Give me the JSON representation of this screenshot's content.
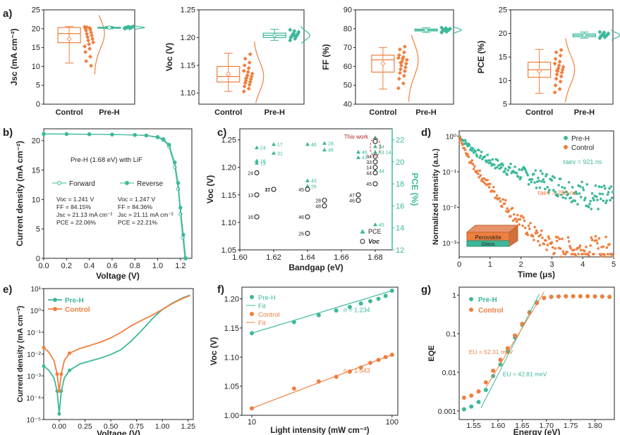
{
  "colors": {
    "control": "#ef7f3f",
    "preh": "#3db89a",
    "axis": "#222222",
    "dashed_circle": "#c0392b",
    "title_red": "#b32222"
  },
  "chart_data": [
    {
      "type": "box",
      "panel": "a) Jsc",
      "ylabel": "Jsc (mA cm⁻²)",
      "ylim": [
        0,
        25
      ],
      "yticks": [
        0,
        5,
        10,
        15,
        20,
        25
      ],
      "categories": [
        "Control",
        "Pre-H"
      ],
      "series": [
        {
          "name": "Control",
          "median": 18.7,
          "q1": 16.3,
          "q3": 20.3,
          "whisker_low": 10.9,
          "whisker_high": 20.6,
          "mean": 17.3,
          "points": [
            20.5,
            20.2,
            20.0,
            19.8,
            19.5,
            19.0,
            18.6,
            18.2,
            17.8,
            17.3,
            16.9,
            16.4,
            15.9,
            15.3,
            14.7,
            13.8,
            12.6,
            11.4,
            10.2,
            20.4
          ]
        },
        {
          "name": "Pre-H",
          "median": 20.3,
          "q1": 20.2,
          "q3": 20.4,
          "whisker_low": 20.0,
          "whisker_high": 20.6,
          "mean": 20.3,
          "points": [
            20.0,
            20.1,
            20.2,
            20.2,
            20.3,
            20.3,
            20.3,
            20.4,
            20.4,
            20.5,
            20.5,
            20.6,
            20.3,
            20.2,
            20.4
          ]
        }
      ]
    },
    {
      "type": "box",
      "panel": "a) Voc",
      "ylabel": "Voc (V)",
      "ylim": [
        1.08,
        1.25
      ],
      "yticks": [
        1.1,
        1.15,
        1.2,
        1.25
      ],
      "categories": [
        "Control",
        "Pre-H"
      ],
      "series": [
        {
          "name": "Control",
          "median": 1.13,
          "q1": 1.12,
          "q3": 1.148,
          "whisker_low": 1.103,
          "whisker_high": 1.172,
          "mean": 1.134,
          "points": [
            1.103,
            1.108,
            1.112,
            1.115,
            1.118,
            1.12,
            1.122,
            1.125,
            1.128,
            1.13,
            1.132,
            1.135,
            1.138,
            1.14,
            1.145,
            1.15,
            1.155,
            1.162,
            1.17,
            1.126
          ]
        },
        {
          "name": "Pre-H",
          "median": 1.204,
          "q1": 1.2,
          "q3": 1.208,
          "whisker_low": 1.195,
          "whisker_high": 1.215,
          "mean": 1.204,
          "points": [
            1.195,
            1.198,
            1.2,
            1.201,
            1.202,
            1.203,
            1.204,
            1.205,
            1.206,
            1.207,
            1.208,
            1.21,
            1.212,
            1.214,
            1.203
          ]
        }
      ]
    },
    {
      "type": "box",
      "panel": "a) FF",
      "ylabel": "FF (%)",
      "ylim": [
        40,
        90
      ],
      "yticks": [
        40,
        50,
        60,
        70,
        80,
        90
      ],
      "categories": [
        "Control",
        "Pre-H"
      ],
      "series": [
        {
          "name": "Control",
          "median": 63.5,
          "q1": 57.0,
          "q3": 66.0,
          "whisker_low": 48.0,
          "whisker_high": 70.0,
          "mean": 61.5,
          "points": [
            48.5,
            51.0,
            53.5,
            55.0,
            56.5,
            57.5,
            58.5,
            59.5,
            60.5,
            61.5,
            62.5,
            63.5,
            64.0,
            64.5,
            65.0,
            66.0,
            67.5,
            69.0,
            70.5,
            62.0
          ]
        },
        {
          "name": "Pre-H",
          "median": 79.3,
          "q1": 78.8,
          "q3": 79.8,
          "whisker_low": 78.0,
          "whisker_high": 80.6,
          "mean": 79.3,
          "points": [
            78.0,
            78.4,
            78.7,
            78.9,
            79.1,
            79.2,
            79.3,
            79.4,
            79.5,
            79.6,
            79.8,
            80.0,
            80.3,
            80.6,
            79.0
          ]
        }
      ]
    },
    {
      "type": "box",
      "panel": "a) PCE",
      "ylabel": "PCE (%)",
      "ylim": [
        5,
        25
      ],
      "yticks": [
        5,
        10,
        15,
        20,
        25
      ],
      "categories": [
        "Control",
        "Pre-H"
      ],
      "series": [
        {
          "name": "Control",
          "median": 12.3,
          "q1": 10.7,
          "q3": 13.9,
          "whisker_low": 7.3,
          "whisker_high": 16.6,
          "mean": 12.0,
          "points": [
            7.5,
            8.2,
            9.0,
            9.8,
            10.4,
            10.9,
            11.3,
            11.7,
            12.0,
            12.3,
            12.6,
            12.9,
            13.2,
            13.6,
            14.0,
            14.6,
            15.3,
            16.0,
            16.5,
            12.1
          ]
        },
        {
          "name": "Pre-H",
          "median": 19.6,
          "q1": 19.3,
          "q3": 19.9,
          "whisker_low": 19.0,
          "whisker_high": 20.3,
          "mean": 19.6,
          "points": [
            19.0,
            19.2,
            19.3,
            19.4,
            19.5,
            19.5,
            19.6,
            19.6,
            19.7,
            19.8,
            19.9,
            20.0,
            20.2,
            20.3,
            19.4
          ]
        }
      ]
    },
    {
      "type": "line",
      "panel": "b)",
      "xlabel": "Voltage (V)",
      "ylabel": "Current density (mA cm⁻²)",
      "xlim": [
        0,
        1.3
      ],
      "ylim": [
        0,
        22
      ],
      "xticks": [
        0.0,
        0.2,
        0.4,
        0.6,
        0.8,
        1.0,
        1.2
      ],
      "yticks": [
        0,
        5,
        10,
        15,
        20
      ],
      "annotation": "Pre-H (1.68 eV) with LiF",
      "series": [
        {
          "name": "Forward",
          "x": [
            0,
            0.2,
            0.4,
            0.6,
            0.8,
            0.9,
            1.0,
            1.05,
            1.1,
            1.15,
            1.18,
            1.2,
            1.22,
            1.24
          ],
          "y": [
            21.13,
            21.12,
            21.08,
            21.03,
            20.95,
            20.85,
            20.55,
            20.1,
            19.0,
            15.5,
            11.8,
            7.5,
            3.5,
            0
          ]
        },
        {
          "name": "Reverse",
          "x": [
            0,
            0.2,
            0.4,
            0.6,
            0.8,
            0.9,
            1.0,
            1.05,
            1.1,
            1.15,
            1.18,
            1.2,
            1.225,
            1.247
          ],
          "y": [
            21.11,
            21.1,
            21.07,
            21.02,
            20.96,
            20.88,
            20.62,
            20.25,
            19.3,
            16.3,
            12.8,
            8.6,
            4.0,
            0
          ]
        }
      ],
      "stats": [
        {
          "name": "Forward",
          "lines": [
            "Voc = 1.241 V",
            "FF = 84.15%",
            "Jsc = 21.13 mA cm⁻²",
            "PCE = 22.06%"
          ]
        },
        {
          "name": "Reverse",
          "lines": [
            "Voc = 1.247 V",
            "FF = 84.36%",
            "Jsc = 21.11 mA cm⁻²",
            "PCE = 22.21%"
          ]
        }
      ]
    },
    {
      "type": "scatter",
      "panel": "c)",
      "xlabel": "Bandgap (eV)",
      "ylabel": "Voc (V)",
      "ylabel_right": "PCE (%)",
      "xlim": [
        1.6,
        1.69
      ],
      "ylim": [
        1.05,
        1.27
      ],
      "ylim_right": [
        12,
        23
      ],
      "xticks": [
        1.6,
        1.62,
        1.64,
        1.66,
        1.68
      ],
      "yticks": [
        1.05,
        1.1,
        1.15,
        1.2,
        1.25
      ],
      "yticks_right": [
        12,
        14,
        16,
        18,
        20,
        22
      ],
      "legend": [
        "PCE",
        "Voc"
      ],
      "this_work_label": "This work",
      "voc_points": [
        {
          "x": 1.61,
          "y": 1.19,
          "label": "24"
        },
        {
          "x": 1.61,
          "y": 1.15,
          "label": "13"
        },
        {
          "x": 1.61,
          "y": 1.11,
          "label": "16"
        },
        {
          "x": 1.62,
          "y": 1.16,
          "label": "31"
        },
        {
          "x": 1.62,
          "y": 1.16,
          "label": "17"
        },
        {
          "x": 1.64,
          "y": 1.16,
          "label": "45"
        },
        {
          "x": 1.64,
          "y": 1.11,
          "label": "46"
        },
        {
          "x": 1.64,
          "y": 1.08,
          "label": "26"
        },
        {
          "x": 1.65,
          "y": 1.14,
          "label": "28"
        },
        {
          "x": 1.65,
          "y": 1.13,
          "label": "48"
        },
        {
          "x": 1.67,
          "y": 1.15,
          "label": "47"
        },
        {
          "x": 1.67,
          "y": 1.14,
          "label": "46"
        },
        {
          "x": 1.68,
          "y": 1.22,
          "label": "34"
        },
        {
          "x": 1.68,
          "y": 1.21,
          "label": "33"
        },
        {
          "x": 1.68,
          "y": 1.2,
          "label": "14"
        },
        {
          "x": 1.68,
          "y": 1.19,
          "label": "44"
        },
        {
          "x": 1.68,
          "y": 1.17,
          "label": "45"
        },
        {
          "x": 1.68,
          "y": 1.247,
          "label": ""
        }
      ],
      "pce_points": [
        {
          "x": 1.61,
          "y": 21.3,
          "label": "24"
        },
        {
          "x": 1.61,
          "y": 20.1,
          "label": "16"
        },
        {
          "x": 1.61,
          "y": 19.9,
          "label": "13"
        },
        {
          "x": 1.62,
          "y": 21.6,
          "label": "17"
        },
        {
          "x": 1.62,
          "y": 20.8,
          "label": "31"
        },
        {
          "x": 1.64,
          "y": 21.6,
          "label": "46"
        },
        {
          "x": 1.64,
          "y": 18.3,
          "label": "45"
        },
        {
          "x": 1.64,
          "y": 17.8,
          "label": "26"
        },
        {
          "x": 1.65,
          "y": 21.7,
          "label": "28"
        },
        {
          "x": 1.65,
          "y": 21.1,
          "label": "48"
        },
        {
          "x": 1.67,
          "y": 20.9,
          "label": "46"
        },
        {
          "x": 1.67,
          "y": 20.4,
          "label": "47"
        },
        {
          "x": 1.68,
          "y": 21.4,
          "label": "34"
        },
        {
          "x": 1.68,
          "y": 20.9,
          "label": "33 14"
        },
        {
          "x": 1.68,
          "y": 19.2,
          "label": "44"
        },
        {
          "x": 1.68,
          "y": 14.3,
          "label": "45"
        },
        {
          "x": 1.68,
          "y": 22.21,
          "label": ""
        }
      ]
    },
    {
      "type": "scatter",
      "panel": "d)",
      "xlabel": "Time (μs)",
      "ylabel": "Normalized intensity (a.u.)",
      "xlim": [
        0,
        5
      ],
      "ylim_log": [
        0.0004,
        1.4
      ],
      "xticks": [
        0,
        1,
        2,
        3,
        4,
        5
      ],
      "yticks": [
        "10⁰",
        "10⁻¹",
        "10⁻²",
        "10⁻³"
      ],
      "series": [
        {
          "name": "Pre-H",
          "tau_label": "τaev = 921 ns",
          "tau_ns": 921
        },
        {
          "name": "Control",
          "tau_label": "τaev = 259 ns",
          "tau_ns": 259
        }
      ],
      "inset_labels": [
        "Perovskite",
        "Glass"
      ]
    },
    {
      "type": "line",
      "panel": "e)",
      "xlabel": "Voltage (V)",
      "ylabel": "Current density (mA cm⁻²)",
      "xlim": [
        -0.15,
        1.3
      ],
      "ylim_log": [
        1e-05,
        10
      ],
      "xticks": [
        0.0,
        0.25,
        0.5,
        0.75,
        1.0,
        1.25
      ],
      "yticks": [
        "10¹",
        "10⁰",
        "10⁻¹",
        "10⁻²",
        "10⁻³",
        "10⁻⁴",
        "10⁻⁵"
      ],
      "series": [
        {
          "name": "Pre-H",
          "x": [
            -0.15,
            -0.1,
            -0.05,
            -0.02,
            0,
            0.02,
            0.05,
            0.1,
            0.2,
            0.3,
            0.4,
            0.5,
            0.6,
            0.7,
            0.8,
            0.9,
            1.0,
            1.1,
            1.2,
            1.27
          ],
          "y": [
            0.0028,
            0.0018,
            0.0008,
            0.0002,
            1.8e-05,
            0.0002,
            0.0008,
            0.0018,
            0.0035,
            0.0048,
            0.0065,
            0.0095,
            0.016,
            0.04,
            0.12,
            0.4,
            1.1,
            2.2,
            3.8,
            5.0
          ]
        },
        {
          "name": "Control",
          "x": [
            -0.15,
            -0.1,
            -0.05,
            -0.02,
            0,
            0.02,
            0.05,
            0.1,
            0.2,
            0.3,
            0.4,
            0.5,
            0.6,
            0.7,
            0.8,
            0.9,
            1.0,
            1.1,
            1.2,
            1.27
          ],
          "y": [
            0.02,
            0.012,
            0.005,
            0.0012,
            0.0002,
            0.0012,
            0.005,
            0.011,
            0.018,
            0.025,
            0.035,
            0.055,
            0.1,
            0.2,
            0.35,
            0.6,
            1.1,
            2.1,
            3.6,
            4.8
          ]
        }
      ]
    },
    {
      "type": "scatter",
      "panel": "f)",
      "xlabel": "Light intensity (mW cm⁻²)",
      "ylabel": "Voc (V)",
      "xlim_log": [
        8.5,
        110
      ],
      "ylim": [
        1.0,
        1.22
      ],
      "xticks": [
        10,
        100
      ],
      "yticks": [
        1.0,
        1.05,
        1.1,
        1.15,
        1.2
      ],
      "legend": [
        "Pre-H",
        "Fit",
        "Control",
        "Fit"
      ],
      "series": [
        {
          "name": "Pre-H",
          "fit_label": "n = 1.234",
          "x": [
            10,
            20,
            30,
            40,
            50,
            60,
            70,
            80,
            90,
            100
          ],
          "y": [
            1.141,
            1.16,
            1.172,
            1.18,
            1.186,
            1.192,
            1.196,
            1.2,
            1.205,
            1.214
          ]
        },
        {
          "name": "Control",
          "fit_label": "n = 1.543",
          "x": [
            10,
            20,
            30,
            40,
            50,
            60,
            70,
            80,
            90,
            100
          ],
          "y": [
            1.012,
            1.046,
            1.058,
            1.066,
            1.075,
            1.082,
            1.09,
            1.095,
            1.1,
            1.104
          ]
        }
      ]
    },
    {
      "type": "scatter",
      "panel": "g)",
      "xlabel": "Energy (eV)",
      "ylabel": "EQE",
      "xlim": [
        1.52,
        1.84
      ],
      "ylim_log": [
        0.0006,
        1.6
      ],
      "xticks": [
        1.55,
        1.6,
        1.65,
        1.7,
        1.75,
        1.8
      ],
      "yticks": [
        "1",
        "0.1",
        "0.01",
        "0.001"
      ],
      "series": [
        {
          "name": "Pre-H",
          "eu_label": "EU = 42.81 meV",
          "x": [
            1.53,
            1.545,
            1.56,
            1.575,
            1.59,
            1.605,
            1.62,
            1.635,
            1.65,
            1.665,
            1.68,
            1.695,
            1.71,
            1.725,
            1.74,
            1.755,
            1.77,
            1.785,
            1.8,
            1.815,
            1.83
          ],
          "y": [
            0.0011,
            0.0013,
            0.0017,
            0.0035,
            0.008,
            0.016,
            0.035,
            0.08,
            0.17,
            0.36,
            0.65,
            0.85,
            0.9,
            0.92,
            0.93,
            0.93,
            0.93,
            0.93,
            0.92,
            0.92,
            0.9
          ]
        },
        {
          "name": "Control",
          "eu_label": "EU = 52.31 meV",
          "x": [
            1.53,
            1.545,
            1.56,
            1.575,
            1.59,
            1.605,
            1.62,
            1.635,
            1.65,
            1.665,
            1.68,
            1.695,
            1.71,
            1.725,
            1.74,
            1.755,
            1.77,
            1.785,
            1.8,
            1.815,
            1.83
          ],
          "y": [
            0.0022,
            0.0025,
            0.0032,
            0.0055,
            0.011,
            0.021,
            0.042,
            0.09,
            0.18,
            0.35,
            0.62,
            0.84,
            0.9,
            0.92,
            0.93,
            0.93,
            0.93,
            0.93,
            0.92,
            0.92,
            0.9
          ]
        }
      ]
    }
  ]
}
